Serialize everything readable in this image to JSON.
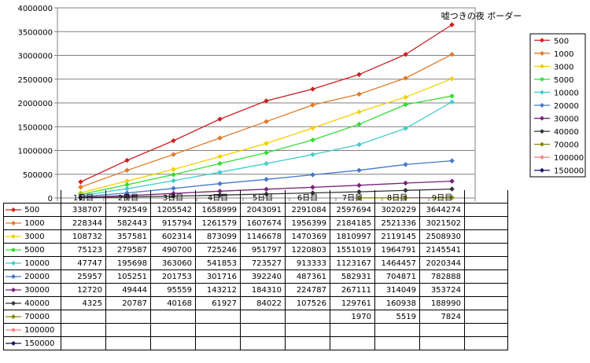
{
  "chart_data": {
    "type": "line",
    "title": "嘘つきの夜 ボーダー",
    "xlabel": "",
    "ylabel": "",
    "categories": [
      "1日目",
      "2日目",
      "3日目",
      "4日目",
      "5日目",
      "6日目",
      "7日目",
      "8日目",
      "9日目"
    ],
    "ylim": [
      0,
      4000000
    ],
    "yticks": [
      "0",
      "500000",
      "1000000",
      "1500000",
      "2000000",
      "2500000",
      "3000000",
      "3500000",
      "4000000"
    ],
    "grid": "horizontal",
    "legend": "right",
    "series": [
      {
        "name": "500",
        "color": "#cc2222",
        "values": [
          338707,
          792549,
          1205542,
          1658999,
          2043091,
          2291084,
          2597694,
          3020229,
          3644274
        ],
        "labels": [
          "338707",
          "792549",
          "1205542",
          "1658999",
          "2043091",
          "2291084",
          "2597694",
          "3020229",
          "3644274"
        ]
      },
      {
        "name": "1000",
        "color": "#e07b28",
        "values": [
          228344,
          582443,
          915794,
          1261579,
          1607674,
          1956399,
          2184185,
          2521336,
          3021502
        ],
        "labels": [
          "228344",
          "582443",
          "915794",
          "1261579",
          "1607674",
          "1956399",
          "2184185",
          "2521336",
          "3021502"
        ]
      },
      {
        "name": "3000",
        "color": "#f0d000",
        "values": [
          108732,
          357581,
          602314,
          873099,
          1146678,
          1470369,
          1810997,
          2119145,
          2508930
        ],
        "labels": [
          "108732",
          "357581",
          "602314",
          "873099",
          "1146678",
          "1470369",
          "1810997",
          "2119145",
          "2508930"
        ]
      },
      {
        "name": "5000",
        "color": "#33dd33",
        "values": [
          75123,
          279587,
          490700,
          725246,
          951797,
          1220803,
          1551019,
          1964791,
          2145541
        ],
        "labels": [
          "75123",
          "279587",
          "490700",
          "725246",
          "951797",
          "1220803",
          "1551019",
          "1964791",
          "2145541"
        ]
      },
      {
        "name": "10000",
        "color": "#44cccc",
        "values": [
          47747,
          195698,
          363060,
          541853,
          723527,
          913333,
          1123167,
          1464457,
          2020344
        ],
        "labels": [
          "47747",
          "195698",
          "363060",
          "541853",
          "723527",
          "913333",
          "1123167",
          "1464457",
          "2020344"
        ]
      },
      {
        "name": "20000",
        "color": "#4477cc",
        "values": [
          25957,
          105251,
          201753,
          301716,
          392240,
          487361,
          582931,
          704871,
          782888
        ],
        "labels": [
          "25957",
          "105251",
          "201753",
          "301716",
          "392240",
          "487361",
          "582931",
          "704871",
          "782888"
        ]
      },
      {
        "name": "30000",
        "color": "#772277",
        "values": [
          12720,
          49444,
          95559,
          143212,
          184310,
          224787,
          267111,
          314049,
          353724
        ],
        "labels": [
          "12720",
          "49444",
          "95559",
          "143212",
          "184310",
          "224787",
          "267111",
          "314049",
          "353724"
        ]
      },
      {
        "name": "40000",
        "color": "#333333",
        "values": [
          4325,
          20787,
          40168,
          61927,
          84022,
          107526,
          129761,
          160938,
          188990
        ],
        "labels": [
          "4325",
          "20787",
          "40168",
          "61927",
          "84022",
          "107526",
          "129761",
          "160938",
          "188990"
        ]
      },
      {
        "name": "70000",
        "color": "#888800",
        "values": [
          null,
          null,
          null,
          null,
          null,
          null,
          1970,
          5519,
          7824
        ],
        "labels": [
          "",
          "",
          "",
          "",
          "",
          "",
          "1970",
          "5519",
          "7824"
        ]
      },
      {
        "name": "100000",
        "color": "#f08888",
        "values": [
          null,
          null,
          null,
          null,
          null,
          null,
          null,
          null,
          null
        ],
        "labels": [
          "",
          "",
          "",
          "",
          "",
          "",
          "",
          "",
          ""
        ]
      },
      {
        "name": "150000",
        "color": "#111166",
        "values": [
          null,
          null,
          null,
          null,
          null,
          null,
          null,
          null,
          null
        ],
        "labels": [
          "",
          "",
          "",
          "",
          "",
          "",
          "",
          "",
          ""
        ]
      }
    ]
  }
}
